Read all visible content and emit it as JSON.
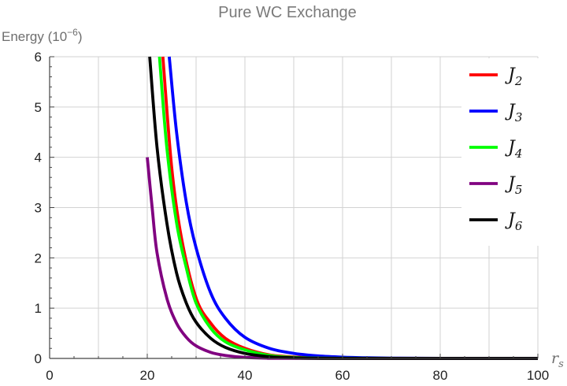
{
  "chart_data": {
    "type": "line",
    "title": "Pure WC Exchange",
    "ylabel": {
      "text": "Energy (10",
      "exponent": "−6",
      "close": ")"
    },
    "xlabel": {
      "main": "r",
      "sub": "s"
    },
    "xlim": [
      0,
      100
    ],
    "ylim": [
      0,
      6
    ],
    "xticks": [
      0,
      20,
      40,
      60,
      80,
      100
    ],
    "yticks": [
      0,
      1,
      2,
      3,
      4,
      5,
      6
    ],
    "xgrid": [
      10,
      20,
      30,
      40,
      50,
      60,
      70,
      80,
      90,
      100
    ],
    "ygrid": [
      1,
      2,
      3,
      4,
      5,
      6
    ],
    "grid": true,
    "legend_position": "right",
    "series": [
      {
        "name": "J",
        "sub": "2",
        "color": "#ff0000",
        "points": [
          [
            23.2,
            6
          ],
          [
            25,
            3.8
          ],
          [
            27,
            2.4
          ],
          [
            30,
            1.2
          ],
          [
            33,
            0.7
          ],
          [
            36,
            0.4
          ],
          [
            40,
            0.2
          ],
          [
            45,
            0.07
          ],
          [
            50,
            0.03
          ],
          [
            55,
            0.012
          ],
          [
            60,
            0.005
          ],
          [
            70,
            0.001
          ],
          [
            80,
            0.0002
          ],
          [
            100,
            0
          ]
        ]
      },
      {
        "name": "J",
        "sub": "3",
        "color": "#0000ff",
        "points": [
          [
            24.5,
            6
          ],
          [
            26,
            4.5
          ],
          [
            28,
            3.1
          ],
          [
            30,
            2.2
          ],
          [
            33,
            1.3
          ],
          [
            36,
            0.8
          ],
          [
            40,
            0.42
          ],
          [
            45,
            0.2
          ],
          [
            50,
            0.1
          ],
          [
            55,
            0.05
          ],
          [
            60,
            0.025
          ],
          [
            65,
            0.012
          ],
          [
            70,
            0.006
          ],
          [
            80,
            0.0015
          ],
          [
            100,
            0
          ]
        ]
      },
      {
        "name": "J",
        "sub": "4",
        "color": "#00ff00",
        "points": [
          [
            22.5,
            6
          ],
          [
            24,
            4.2
          ],
          [
            26,
            2.7
          ],
          [
            28,
            1.8
          ],
          [
            30,
            1.1
          ],
          [
            33,
            0.6
          ],
          [
            36,
            0.33
          ],
          [
            40,
            0.17
          ],
          [
            45,
            0.06
          ],
          [
            50,
            0.02
          ],
          [
            60,
            0.003
          ],
          [
            100,
            0
          ]
        ]
      },
      {
        "name": "J",
        "sub": "5",
        "color": "#800080",
        "points": [
          [
            20,
            4
          ],
          [
            21,
            3.0
          ],
          [
            22,
            2.1
          ],
          [
            24,
            1.2
          ],
          [
            26,
            0.7
          ],
          [
            28,
            0.42
          ],
          [
            30,
            0.25
          ],
          [
            33,
            0.12
          ],
          [
            36,
            0.06
          ],
          [
            40,
            0.02
          ],
          [
            45,
            0.005
          ],
          [
            50,
            0.001
          ],
          [
            100,
            0
          ]
        ]
      },
      {
        "name": "J",
        "sub": "6",
        "color": "#000000",
        "points": [
          [
            20.5,
            6
          ],
          [
            22,
            4.2
          ],
          [
            24,
            2.7
          ],
          [
            26,
            1.7
          ],
          [
            28,
            1.1
          ],
          [
            30,
            0.72
          ],
          [
            33,
            0.4
          ],
          [
            36,
            0.22
          ],
          [
            40,
            0.1
          ],
          [
            45,
            0.035
          ],
          [
            50,
            0.012
          ],
          [
            60,
            0.001
          ],
          [
            100,
            0
          ]
        ]
      }
    ]
  }
}
